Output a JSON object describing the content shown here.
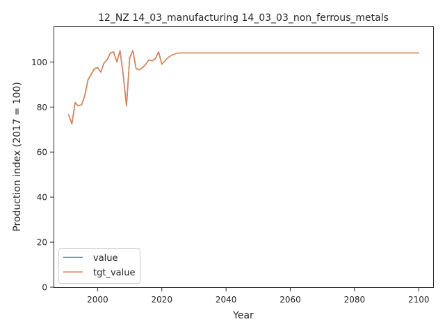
{
  "chart_data": {
    "type": "line",
    "title": "12_NZ 14_03_manufacturing 14_03_03_non_ferrous_metals",
    "xlabel": "Year",
    "ylabel": "Production index (2017 = 100)",
    "xlim": [
      1986.5,
      2104.5
    ],
    "ylim": [
      0,
      115.5
    ],
    "xticks": [
      2000,
      2020,
      2040,
      2060,
      2080,
      2100
    ],
    "yticks": [
      0,
      20,
      40,
      60,
      80,
      100
    ],
    "grid": false,
    "legend_position": "lower-left",
    "series": [
      {
        "name": "value",
        "color": "#4c72b0",
        "x": [
          1991,
          1992,
          1993,
          1994,
          1995,
          1996,
          1997,
          1998,
          1999,
          2000,
          2001,
          2002,
          2003,
          2004,
          2005,
          2006,
          2007,
          2008,
          2009,
          2010,
          2011,
          2012,
          2013,
          2014,
          2015,
          2016,
          2017,
          2018,
          2019,
          2020
        ],
        "y": [
          76.5,
          72.5,
          82.0,
          80.5,
          81.0,
          85.0,
          92.0,
          94.5,
          97.0,
          97.5,
          95.5,
          99.5,
          101.0,
          104.0,
          104.5,
          100.0,
          105.0,
          94.0,
          80.5,
          102.0,
          105.0,
          97.0,
          96.5,
          97.5,
          99.0,
          101.0,
          100.5,
          101.5,
          104.5,
          99.0
        ]
      },
      {
        "name": "tgt_value",
        "color": "#dd8452",
        "x": [
          1991,
          1992,
          1993,
          1994,
          1995,
          1996,
          1997,
          1998,
          1999,
          2000,
          2001,
          2002,
          2003,
          2004,
          2005,
          2006,
          2007,
          2008,
          2009,
          2010,
          2011,
          2012,
          2013,
          2014,
          2015,
          2016,
          2017,
          2018,
          2019,
          2020,
          2021,
          2022,
          2023,
          2024,
          2025,
          2030,
          2040,
          2050,
          2060,
          2070,
          2080,
          2090,
          2100
        ],
        "y": [
          76.5,
          72.5,
          82.0,
          80.5,
          81.0,
          85.0,
          92.0,
          94.5,
          97.0,
          97.5,
          95.5,
          99.5,
          101.0,
          104.0,
          104.5,
          100.0,
          105.0,
          94.0,
          80.5,
          102.0,
          105.0,
          97.0,
          96.5,
          97.5,
          99.0,
          101.0,
          100.5,
          101.5,
          104.5,
          99.0,
          100.5,
          102.0,
          103.0,
          103.5,
          104.0,
          104.0,
          104.0,
          104.0,
          104.0,
          104.0,
          104.0,
          104.0,
          104.0
        ]
      }
    ]
  }
}
